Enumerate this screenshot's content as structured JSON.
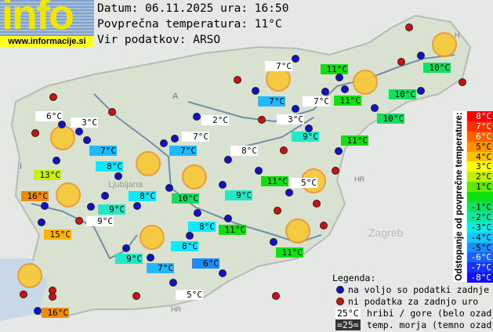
{
  "logo": {
    "text": "info",
    "url": "www.informacije.si"
  },
  "header": {
    "date_line": "Datum: 06.11.2025 ura: 16:50",
    "avg_line": "Povprečna temperatura: 11°C",
    "source_line": "Vir podatkov: ARSO"
  },
  "map_letters": {
    "austria": "A",
    "italy": "I",
    "croatia": "HR",
    "hungary": "H",
    "city": "Ljubljana",
    "zagreb": "Zagreb"
  },
  "stations": [
    {
      "t": "6°C",
      "c": "#ffffff"
    },
    {
      "t": "3°C",
      "c": "#ffffff"
    },
    {
      "t": "2°C",
      "c": "#ffffff"
    },
    {
      "t": "7°C",
      "c": "#ffffff"
    },
    {
      "t": "7°C",
      "c": "#20b8ff"
    },
    {
      "t": "7°C",
      "c": "#20b8ff"
    },
    {
      "t": "8°C",
      "c": "#ffffff"
    },
    {
      "t": "8°C",
      "c": "#10e8ff"
    },
    {
      "t": "13°C",
      "c": "#c8f000"
    },
    {
      "t": "16°C",
      "c": "#f08c00"
    },
    {
      "t": "9°C",
      "c": "#20e8c8"
    },
    {
      "t": "8°C",
      "c": "#10e8ff"
    },
    {
      "t": "10°C",
      "c": "#10e060"
    },
    {
      "t": "9°C",
      "c": "#20e8c8"
    },
    {
      "t": "9°C",
      "c": "#ffffff"
    },
    {
      "t": "15°C",
      "c": "#ffb400"
    },
    {
      "t": "8°C",
      "c": "#10e8ff"
    },
    {
      "t": "11°C",
      "c": "#10e010"
    },
    {
      "t": "7°C",
      "c": "#ffffff"
    },
    {
      "t": "11°C",
      "c": "#10e010"
    },
    {
      "t": "10°C",
      "c": "#10e060"
    },
    {
      "t": "7°C",
      "c": "#20b8ff"
    },
    {
      "t": "7°C",
      "c": "#ffffff"
    },
    {
      "t": "11°C",
      "c": "#10e010"
    },
    {
      "t": "10°C",
      "c": "#10e060"
    },
    {
      "t": "3°C",
      "c": "#ffffff"
    },
    {
      "t": "9°C",
      "c": "#20e8c8"
    },
    {
      "t": "10°C",
      "c": "#10e060"
    },
    {
      "t": "11°C",
      "c": "#10e010"
    },
    {
      "t": "11°C",
      "c": "#10e010"
    },
    {
      "t": "5°C",
      "c": "#ffffff"
    },
    {
      "t": "8°C",
      "c": "#10e8ff"
    },
    {
      "t": "11°C",
      "c": "#10e010"
    },
    {
      "t": "9°C",
      "c": "#20e8c8"
    },
    {
      "t": "7°C",
      "c": "#20b8ff"
    },
    {
      "t": "6°C",
      "c": "#1a8cff"
    },
    {
      "t": "5°C",
      "c": "#ffffff"
    },
    {
      "t": "16°C",
      "c": "#f08c00"
    }
  ],
  "scale": {
    "title": "Odstopanje od povprečne temperature:",
    "rows": [
      {
        "t": "8°C",
        "c": "#ff0000",
        "fg": "#ffffff"
      },
      {
        "t": "7°C",
        "c": "#ff3000",
        "fg": "#ffffff"
      },
      {
        "t": "6°C",
        "c": "#ff6000",
        "fg": "#ffffff"
      },
      {
        "t": "5°C",
        "c": "#ff9000",
        "fg": "#000000"
      },
      {
        "t": "4°C",
        "c": "#ffc000",
        "fg": "#000000"
      },
      {
        "t": "3°C",
        "c": "#ffff00",
        "fg": "#000000"
      },
      {
        "t": "2°C",
        "c": "#c0f000",
        "fg": "#000000"
      },
      {
        "t": "1°C",
        "c": "#60e800",
        "fg": "#000000"
      },
      {
        "t": "",
        "c": "#10e010",
        "fg": "#000000"
      },
      {
        "t": "-1°C",
        "c": "#10e060",
        "fg": "#000000"
      },
      {
        "t": "-2°C",
        "c": "#10e8a0",
        "fg": "#000000"
      },
      {
        "t": "-3°C",
        "c": "#10e8e0",
        "fg": "#000000"
      },
      {
        "t": "-4°C",
        "c": "#10c8ff",
        "fg": "#000000"
      },
      {
        "t": "-5°C",
        "c": "#1890ff",
        "fg": "#000000"
      },
      {
        "t": "-6°C",
        "c": "#1860ff",
        "fg": "#ffffff"
      },
      {
        "t": "-7°C",
        "c": "#1830ff",
        "fg": "#ffffff"
      },
      {
        "t": "-8°C",
        "c": "#1010f0",
        "fg": "#ffffff"
      }
    ]
  },
  "legend": {
    "title": "Legenda:",
    "blue": "na voljo so podatki zadnje ure",
    "red": "ni podatka za zadnjo uro",
    "mountain_sample": "25°C",
    "mountain": "hribi / gore (belo ozadje)",
    "sea_sample": "=25=",
    "sea": "temp. morja (temno ozadje)",
    "colors": {
      "blue": "#1010d0",
      "red": "#d01010"
    }
  }
}
